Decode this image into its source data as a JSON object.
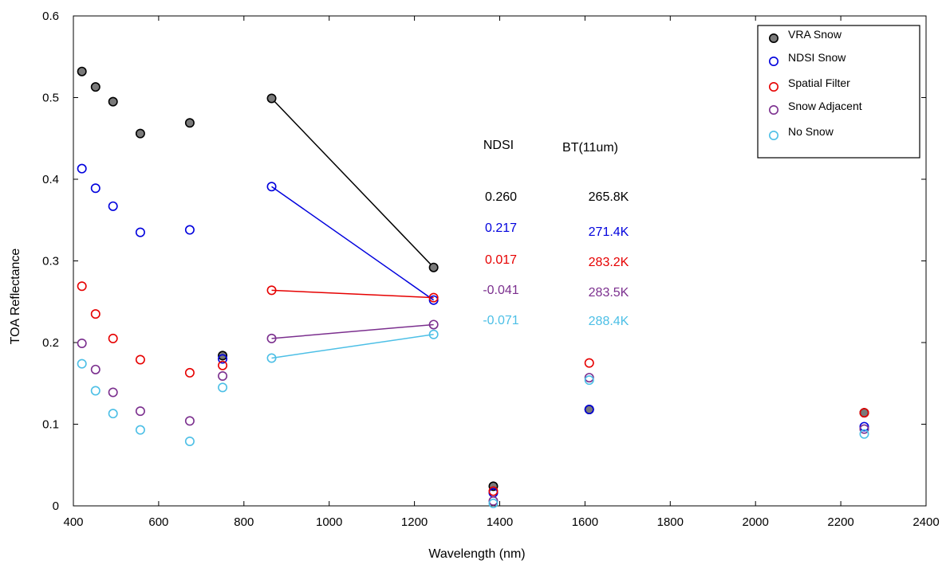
{
  "chart_data": {
    "type": "scatter",
    "xlabel": "Wavelength (nm)",
    "ylabel": "TOA Reflectance",
    "xlim": [
      400,
      2400
    ],
    "ylim": [
      0,
      0.6
    ],
    "xticks": [
      "400",
      "600",
      "800",
      "1000",
      "1200",
      "1400",
      "1600",
      "1800",
      "2000",
      "2200",
      "2400"
    ],
    "yticks": [
      "0",
      "0.1",
      "0.2",
      "0.3",
      "0.4",
      "0.5",
      "0.6"
    ],
    "legend_position": "top-right",
    "series": [
      {
        "name": "VRA Snow",
        "color": "#000000",
        "filled": true,
        "fill": "#7a7a7a",
        "points": [
          [
            420,
            0.532
          ],
          [
            452,
            0.513
          ],
          [
            493,
            0.495
          ],
          [
            557,
            0.456
          ],
          [
            673,
            0.469
          ],
          [
            750,
            0.184
          ],
          [
            865,
            0.499
          ],
          [
            1245,
            0.292
          ],
          [
            1385,
            0.024
          ],
          [
            1610,
            0.118
          ],
          [
            2255,
            0.114
          ]
        ],
        "line_segment": [
          [
            865,
            0.499
          ],
          [
            1245,
            0.292
          ]
        ]
      },
      {
        "name": "NDSI Snow",
        "color": "#0000dd",
        "filled": false,
        "points": [
          [
            420,
            0.413
          ],
          [
            452,
            0.389
          ],
          [
            493,
            0.367
          ],
          [
            557,
            0.335
          ],
          [
            673,
            0.338
          ],
          [
            750,
            0.18
          ],
          [
            865,
            0.391
          ],
          [
            1245,
            0.252
          ],
          [
            1385,
            0.016
          ],
          [
            1610,
            0.118
          ],
          [
            2255,
            0.097
          ]
        ],
        "line_segment": [
          [
            865,
            0.391
          ],
          [
            1245,
            0.252
          ]
        ]
      },
      {
        "name": "Spatial Filter",
        "color": "#e60000",
        "filled": false,
        "points": [
          [
            420,
            0.269
          ],
          [
            452,
            0.235
          ],
          [
            493,
            0.205
          ],
          [
            557,
            0.179
          ],
          [
            673,
            0.163
          ],
          [
            750,
            0.172
          ],
          [
            865,
            0.264
          ],
          [
            1245,
            0.255
          ],
          [
            1385,
            0.018
          ],
          [
            1610,
            0.175
          ],
          [
            2255,
            0.114
          ]
        ],
        "line_segment": [
          [
            865,
            0.264
          ],
          [
            1245,
            0.255
          ]
        ]
      },
      {
        "name": "Snow Adjacent",
        "color": "#7b2f8e",
        "filled": false,
        "points": [
          [
            420,
            0.199
          ],
          [
            452,
            0.167
          ],
          [
            493,
            0.139
          ],
          [
            557,
            0.116
          ],
          [
            673,
            0.104
          ],
          [
            750,
            0.159
          ],
          [
            865,
            0.205
          ],
          [
            1245,
            0.222
          ],
          [
            1385,
            0.006
          ],
          [
            1610,
            0.157
          ],
          [
            2255,
            0.094
          ]
        ],
        "line_segment": [
          [
            865,
            0.205
          ],
          [
            1245,
            0.222
          ]
        ]
      },
      {
        "name": "No Snow",
        "color": "#4cbfe6",
        "filled": false,
        "points": [
          [
            420,
            0.174
          ],
          [
            452,
            0.141
          ],
          [
            493,
            0.113
          ],
          [
            557,
            0.093
          ],
          [
            673,
            0.079
          ],
          [
            750,
            0.145
          ],
          [
            865,
            0.181
          ],
          [
            1245,
            0.21
          ],
          [
            1385,
            0.003
          ],
          [
            1610,
            0.154
          ],
          [
            2255,
            0.088
          ]
        ],
        "line_segment": [
          [
            865,
            0.181
          ],
          [
            1245,
            0.21
          ]
        ]
      }
    ],
    "annotation_table": {
      "headers": [
        "NDSI",
        "BT(11um)"
      ],
      "rows": [
        {
          "ndsi": "0.260",
          "bt": "265.8K",
          "color": "#000000"
        },
        {
          "ndsi": "0.217",
          "bt": "271.4K",
          "color": "#0000dd"
        },
        {
          "ndsi": "0.017",
          "bt": "283.2K",
          "color": "#e60000"
        },
        {
          "ndsi": "-0.041",
          "bt": "283.5K",
          "color": "#7b2f8e"
        },
        {
          "ndsi": "-0.071",
          "bt": "288.4K",
          "color": "#4cbfe6"
        }
      ]
    }
  }
}
